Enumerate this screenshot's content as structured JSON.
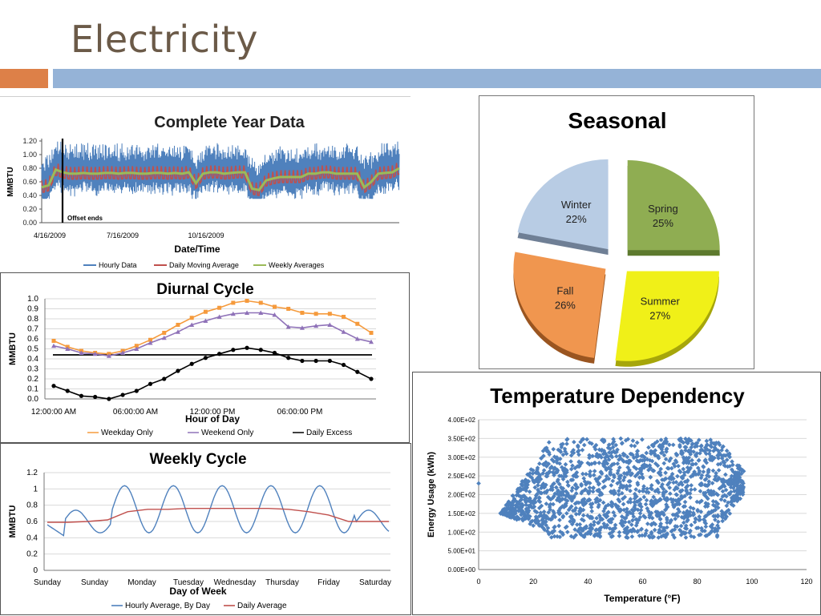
{
  "slide": {
    "title": "Electricity"
  },
  "colors": {
    "accent_orange": "#dd8048",
    "accent_blue": "#95b3d7",
    "title": "#6b5a48"
  },
  "chart_data": [
    {
      "id": "year",
      "type": "line",
      "title": "Complete Year Data",
      "xlabel": "Date/Time",
      "ylabel": "MMBTU",
      "xticks": [
        "4/16/2009",
        "7/16/2009",
        "10/16/2009"
      ],
      "yticks": [
        "0.00",
        "0.20",
        "0.40",
        "0.60",
        "0.80",
        "1.00",
        "1.20"
      ],
      "ylim": [
        0,
        1.2
      ],
      "annotation": "Offset ends",
      "legend": [
        "Hourly Data",
        "Daily Moving Average",
        "Weekly Averages"
      ],
      "weekly_avg": [
        0.52,
        0.55,
        0.78,
        0.74,
        0.72,
        0.72,
        0.73,
        0.72,
        0.72,
        0.73,
        0.73,
        0.72,
        0.73,
        0.73,
        0.72,
        0.72,
        0.73,
        0.73,
        0.72,
        0.73,
        0.72,
        0.74,
        0.58,
        0.72,
        0.74,
        0.74,
        0.72,
        0.73,
        0.74,
        0.74,
        0.5,
        0.48,
        0.62,
        0.65,
        0.67,
        0.67,
        0.67,
        0.67,
        0.72,
        0.72,
        0.74,
        0.74,
        0.72,
        0.72,
        0.72,
        0.72,
        0.52,
        0.6,
        0.72,
        0.73,
        0.74,
        0.8
      ]
    },
    {
      "id": "diurnal",
      "type": "line",
      "title": "Diurnal Cycle",
      "xlabel": "Hour of Day",
      "ylabel": "MMBTU",
      "xticks": [
        "12:00:00 AM",
        "06:00:00 AM",
        "12:00:00 PM",
        "06:00:00 PM"
      ],
      "yticks": [
        "0.0",
        "0.1",
        "0.2",
        "0.3",
        "0.4",
        "0.5",
        "0.6",
        "0.7",
        "0.8",
        "0.9",
        "1.0"
      ],
      "ylim": [
        0,
        1.0
      ],
      "hours": [
        0,
        1,
        2,
        3,
        4,
        5,
        6,
        7,
        8,
        9,
        10,
        11,
        12,
        13,
        14,
        15,
        16,
        17,
        18,
        19,
        20,
        21,
        22,
        23
      ],
      "reference_line": 0.44,
      "series": [
        {
          "name": "Weekday Only",
          "color": "#f59a3c",
          "marker": "square",
          "values": [
            0.58,
            0.52,
            0.48,
            0.46,
            0.45,
            0.48,
            0.53,
            0.59,
            0.66,
            0.74,
            0.81,
            0.87,
            0.91,
            0.96,
            0.98,
            0.96,
            0.92,
            0.9,
            0.86,
            0.85,
            0.85,
            0.82,
            0.75,
            0.66
          ]
        },
        {
          "name": "Weekend Only",
          "color": "#8f72b8",
          "marker": "triangle",
          "values": [
            0.53,
            0.5,
            0.46,
            0.45,
            0.43,
            0.46,
            0.5,
            0.56,
            0.61,
            0.67,
            0.74,
            0.78,
            0.82,
            0.85,
            0.86,
            0.86,
            0.84,
            0.72,
            0.71,
            0.73,
            0.74,
            0.67,
            0.6,
            0.57
          ]
        },
        {
          "name": "Daily Excess",
          "color": "#000000",
          "marker": "circle",
          "values": [
            0.13,
            0.08,
            0.03,
            0.02,
            0.0,
            0.04,
            0.08,
            0.15,
            0.2,
            0.28,
            0.35,
            0.41,
            0.45,
            0.49,
            0.51,
            0.49,
            0.46,
            0.41,
            0.38,
            0.38,
            0.38,
            0.34,
            0.27,
            0.2
          ]
        }
      ]
    },
    {
      "id": "weekly",
      "type": "line",
      "title": "Weekly Cycle",
      "xlabel": "Day of Week",
      "ylabel": "MMBTU",
      "xticks": [
        "Sunday",
        "Sunday",
        "Monday",
        "Tuesday",
        "Wednesday",
        "Thursday",
        "Friday",
        "Saturday"
      ],
      "yticks": [
        "0",
        "0.2",
        "0.4",
        "0.6",
        "0.8",
        "1",
        "1.2"
      ],
      "ylim": [
        0,
        1.2
      ],
      "legend": [
        "Hourly Average, By Day",
        "Daily Average"
      ],
      "daily_average": [
        0.59,
        0.59,
        0.6,
        0.62,
        0.72,
        0.75,
        0.75,
        0.76,
        0.76,
        0.76,
        0.76,
        0.76,
        0.75,
        0.72,
        0.68,
        0.6,
        0.6,
        0.6
      ]
    },
    {
      "id": "seasonal",
      "type": "pie",
      "title": "Seasonal",
      "categories": [
        "Spring",
        "Summer",
        "Fall",
        "Winter"
      ],
      "values": [
        25,
        27,
        26,
        22
      ],
      "labels": [
        "25%",
        "27%",
        "26%",
        "22%"
      ],
      "colors": [
        "#8fad52",
        "#f0f018",
        "#f0964f",
        "#b8cce4"
      ]
    },
    {
      "id": "temp",
      "type": "scatter",
      "title": "Temperature Dependency",
      "xlabel": "Temperature (°F)",
      "ylabel": "Energy Usage (kWh)",
      "xticks": [
        "0",
        "20",
        "40",
        "60",
        "80",
        "100",
        "120"
      ],
      "yticks": [
        "0.00E+00",
        "5.00E+01",
        "1.00E+02",
        "1.50E+02",
        "2.00E+02",
        "2.50E+02",
        "3.00E+02",
        "3.50E+02",
        "4.00E+02"
      ],
      "xlim": [
        0,
        120
      ],
      "ylim": [
        0,
        400
      ],
      "cloud_bounds": {
        "x_min": 8,
        "x_max": 97,
        "y_min": 85,
        "y_max": 350
      },
      "outlier": {
        "x": 0,
        "y": 230
      },
      "color": "#4f81bd"
    }
  ]
}
